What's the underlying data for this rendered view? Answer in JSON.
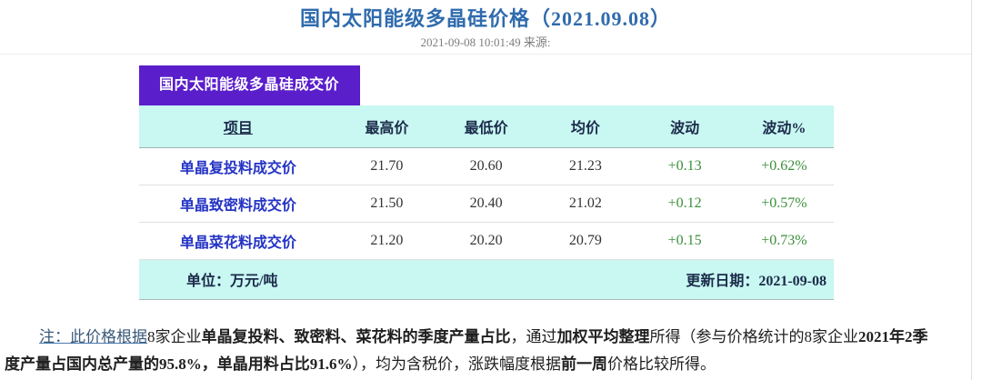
{
  "page": {
    "title": "国内太阳能级多晶硅价格（2021.09.08）",
    "meta": "2021-09-08 10:01:49  来源:"
  },
  "table": {
    "tab_title": "国内太阳能级多晶硅成交价",
    "headers": [
      "项目",
      "最高价",
      "最低价",
      "均价",
      "波动",
      "波动%"
    ],
    "rows": [
      {
        "item": "单晶复投料成交价",
        "high": "21.70",
        "low": "20.60",
        "avg": "21.23",
        "change": "+0.13",
        "change_pct": "+0.62%"
      },
      {
        "item": "单晶致密料成交价",
        "high": "21.50",
        "low": "20.40",
        "avg": "21.02",
        "change": "+0.12",
        "change_pct": "+0.57%"
      },
      {
        "item": "单晶菜花料成交价",
        "high": "21.20",
        "low": "20.20",
        "avg": "20.79",
        "change": "+0.15",
        "change_pct": "+0.73%"
      }
    ],
    "footer": {
      "unit": "单位：万元/吨",
      "update": "更新日期：2021-09-08"
    }
  },
  "chart_data": {
    "type": "table",
    "title": "国内太阳能级多晶硅成交价",
    "columns": [
      "项目",
      "最高价",
      "最低价",
      "均价",
      "波动",
      "波动%"
    ],
    "unit": "万元/吨",
    "update_date": "2021-09-08",
    "rows": [
      [
        "单晶复投料成交价",
        21.7,
        20.6,
        21.23,
        0.13,
        "0.62%"
      ],
      [
        "单晶致密料成交价",
        21.5,
        20.4,
        21.02,
        0.12,
        "0.57%"
      ],
      [
        "单晶菜花料成交价",
        21.2,
        20.2,
        20.79,
        0.15,
        "0.73%"
      ]
    ]
  },
  "note": {
    "seg0": "注：此价格根据",
    "seg1": "8家企业",
    "seg2": "单晶复投料、致密料、菜花料的季度产量占比",
    "seg3": "，通过",
    "seg4": "加权平均整理",
    "seg5": "所得（参与价格统计的8家企业",
    "seg6": "2021年2季",
    "seg7": "度产量占国内总产量的95.8%，单晶用料占比91.6%",
    "seg8": "），均为含税价，涨跌幅度根据",
    "seg9": "前一周",
    "seg10": "价格比较所得。"
  },
  "colors": {
    "title_blue": "#2f6bad",
    "tab_purple": "#5a1ecb",
    "band_cyan": "#c9f7f2",
    "row_label_blue": "#2433c4",
    "delta_green": "#3a8f3a",
    "header_navy": "#1b2b4a"
  }
}
